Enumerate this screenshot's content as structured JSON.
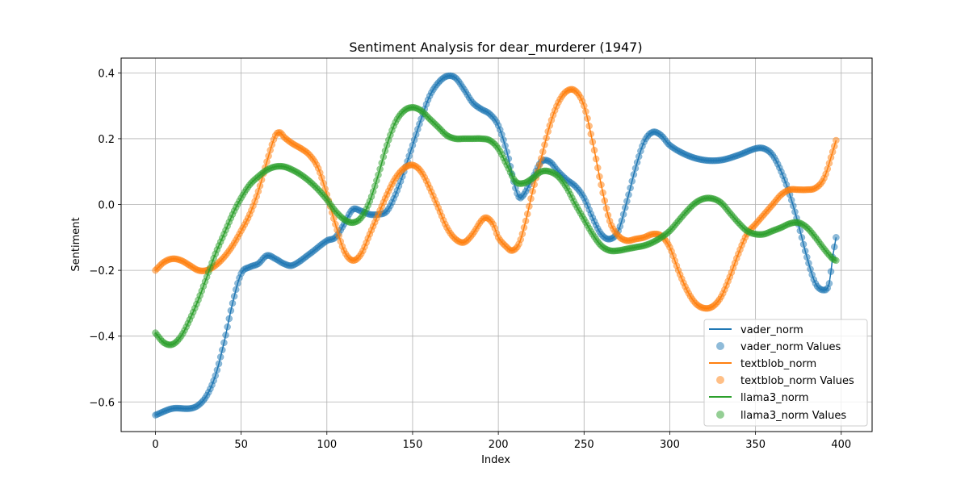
{
  "chart_data": {
    "type": "line",
    "title": "Sentiment Analysis for dear_murderer (1947)",
    "xlabel": "Index",
    "ylabel": "Sentiment",
    "xlim": [
      -20,
      418
    ],
    "ylim": [
      -0.69,
      0.445
    ],
    "xticks": [
      0,
      50,
      100,
      150,
      200,
      250,
      300,
      350,
      400
    ],
    "yticks": [
      -0.6,
      -0.4,
      -0.2,
      0.0,
      0.2,
      0.4
    ],
    "ytick_labels": [
      "−0.6",
      "−0.4",
      "−0.2",
      "0.0",
      "0.2",
      "0.4"
    ],
    "grid": true,
    "legend_position": "lower-right",
    "n_points": 398,
    "series": [
      {
        "name": "vader_norm",
        "scatter_name": "vader_norm Values",
        "color": "#1f77b4",
        "keypoints": [
          [
            0,
            -0.64
          ],
          [
            10,
            -0.62
          ],
          [
            20,
            -0.62
          ],
          [
            25,
            -0.61
          ],
          [
            30,
            -0.58
          ],
          [
            35,
            -0.52
          ],
          [
            40,
            -0.42
          ],
          [
            45,
            -0.3
          ],
          [
            50,
            -0.21
          ],
          [
            55,
            -0.19
          ],
          [
            60,
            -0.18
          ],
          [
            65,
            -0.155
          ],
          [
            70,
            -0.165
          ],
          [
            75,
            -0.18
          ],
          [
            80,
            -0.185
          ],
          [
            90,
            -0.15
          ],
          [
            100,
            -0.11
          ],
          [
            105,
            -0.1
          ],
          [
            110,
            -0.06
          ],
          [
            115,
            -0.015
          ],
          [
            120,
            -0.02
          ],
          [
            125,
            -0.03
          ],
          [
            130,
            -0.03
          ],
          [
            135,
            -0.02
          ],
          [
            140,
            0.03
          ],
          [
            145,
            0.1
          ],
          [
            150,
            0.18
          ],
          [
            155,
            0.26
          ],
          [
            160,
            0.33
          ],
          [
            165,
            0.37
          ],
          [
            170,
            0.39
          ],
          [
            175,
            0.385
          ],
          [
            180,
            0.35
          ],
          [
            185,
            0.31
          ],
          [
            190,
            0.29
          ],
          [
            195,
            0.275
          ],
          [
            200,
            0.24
          ],
          [
            205,
            0.16
          ],
          [
            210,
            0.05
          ],
          [
            213,
            0.02
          ],
          [
            220,
            0.08
          ],
          [
            225,
            0.13
          ],
          [
            230,
            0.13
          ],
          [
            235,
            0.1
          ],
          [
            240,
            0.075
          ],
          [
            245,
            0.055
          ],
          [
            250,
            0.02
          ],
          [
            255,
            -0.04
          ],
          [
            260,
            -0.09
          ],
          [
            265,
            -0.105
          ],
          [
            270,
            -0.08
          ],
          [
            275,
            0.01
          ],
          [
            280,
            0.11
          ],
          [
            285,
            0.19
          ],
          [
            290,
            0.22
          ],
          [
            295,
            0.21
          ],
          [
            300,
            0.18
          ],
          [
            310,
            0.15
          ],
          [
            320,
            0.135
          ],
          [
            330,
            0.135
          ],
          [
            340,
            0.15
          ],
          [
            350,
            0.17
          ],
          [
            355,
            0.17
          ],
          [
            360,
            0.15
          ],
          [
            365,
            0.1
          ],
          [
            370,
            0.03
          ],
          [
            375,
            -0.06
          ],
          [
            380,
            -0.16
          ],
          [
            385,
            -0.24
          ],
          [
            390,
            -0.26
          ],
          [
            393,
            -0.24
          ],
          [
            395,
            -0.16
          ],
          [
            397,
            -0.1
          ]
        ]
      },
      {
        "name": "textblob_norm",
        "scatter_name": "textblob_norm Values",
        "color": "#ff7f0e",
        "keypoints": [
          [
            0,
            -0.2
          ],
          [
            5,
            -0.175
          ],
          [
            10,
            -0.165
          ],
          [
            15,
            -0.17
          ],
          [
            20,
            -0.185
          ],
          [
            25,
            -0.2
          ],
          [
            30,
            -0.2
          ],
          [
            35,
            -0.185
          ],
          [
            40,
            -0.16
          ],
          [
            45,
            -0.125
          ],
          [
            50,
            -0.08
          ],
          [
            55,
            -0.03
          ],
          [
            60,
            0.04
          ],
          [
            65,
            0.13
          ],
          [
            70,
            0.21
          ],
          [
            73,
            0.218
          ],
          [
            75,
            0.205
          ],
          [
            80,
            0.185
          ],
          [
            85,
            0.17
          ],
          [
            90,
            0.15
          ],
          [
            95,
            0.11
          ],
          [
            100,
            0.03
          ],
          [
            105,
            -0.06
          ],
          [
            110,
            -0.14
          ],
          [
            115,
            -0.17
          ],
          [
            120,
            -0.15
          ],
          [
            125,
            -0.09
          ],
          [
            130,
            -0.03
          ],
          [
            135,
            0.03
          ],
          [
            140,
            0.08
          ],
          [
            145,
            0.11
          ],
          [
            150,
            0.12
          ],
          [
            155,
            0.1
          ],
          [
            160,
            0.05
          ],
          [
            165,
            -0.01
          ],
          [
            170,
            -0.07
          ],
          [
            175,
            -0.105
          ],
          [
            180,
            -0.115
          ],
          [
            185,
            -0.09
          ],
          [
            190,
            -0.05
          ],
          [
            193,
            -0.04
          ],
          [
            197,
            -0.06
          ],
          [
            200,
            -0.1
          ],
          [
            205,
            -0.13
          ],
          [
            208,
            -0.14
          ],
          [
            212,
            -0.12
          ],
          [
            216,
            -0.05
          ],
          [
            220,
            0.04
          ],
          [
            225,
            0.14
          ],
          [
            230,
            0.24
          ],
          [
            235,
            0.31
          ],
          [
            240,
            0.345
          ],
          [
            245,
            0.345
          ],
          [
            250,
            0.3
          ],
          [
            255,
            0.19
          ],
          [
            260,
            0.06
          ],
          [
            265,
            -0.05
          ],
          [
            270,
            -0.095
          ],
          [
            275,
            -0.11
          ],
          [
            280,
            -0.105
          ],
          [
            285,
            -0.1
          ],
          [
            290,
            -0.09
          ],
          [
            295,
            -0.095
          ],
          [
            300,
            -0.13
          ],
          [
            305,
            -0.2
          ],
          [
            310,
            -0.26
          ],
          [
            315,
            -0.3
          ],
          [
            320,
            -0.315
          ],
          [
            325,
            -0.31
          ],
          [
            330,
            -0.28
          ],
          [
            335,
            -0.22
          ],
          [
            340,
            -0.15
          ],
          [
            345,
            -0.09
          ],
          [
            350,
            -0.06
          ],
          [
            355,
            -0.03
          ],
          [
            360,
            0.0
          ],
          [
            365,
            0.03
          ],
          [
            370,
            0.045
          ],
          [
            375,
            0.045
          ],
          [
            380,
            0.045
          ],
          [
            385,
            0.05
          ],
          [
            390,
            0.08
          ],
          [
            395,
            0.16
          ],
          [
            397,
            0.195
          ]
        ]
      },
      {
        "name": "llama3_norm",
        "scatter_name": "llama3_norm Values",
        "color": "#2ca02c",
        "keypoints": [
          [
            0,
            -0.39
          ],
          [
            5,
            -0.42
          ],
          [
            10,
            -0.425
          ],
          [
            15,
            -0.4
          ],
          [
            20,
            -0.35
          ],
          [
            25,
            -0.29
          ],
          [
            30,
            -0.22
          ],
          [
            35,
            -0.15
          ],
          [
            40,
            -0.09
          ],
          [
            45,
            -0.03
          ],
          [
            50,
            0.02
          ],
          [
            55,
            0.06
          ],
          [
            60,
            0.085
          ],
          [
            65,
            0.105
          ],
          [
            70,
            0.115
          ],
          [
            75,
            0.115
          ],
          [
            80,
            0.105
          ],
          [
            85,
            0.09
          ],
          [
            90,
            0.07
          ],
          [
            95,
            0.045
          ],
          [
            100,
            0.015
          ],
          [
            105,
            -0.02
          ],
          [
            110,
            -0.045
          ],
          [
            115,
            -0.055
          ],
          [
            120,
            -0.04
          ],
          [
            125,
            0.01
          ],
          [
            130,
            0.09
          ],
          [
            135,
            0.18
          ],
          [
            140,
            0.25
          ],
          [
            145,
            0.285
          ],
          [
            150,
            0.295
          ],
          [
            155,
            0.285
          ],
          [
            160,
            0.26
          ],
          [
            165,
            0.235
          ],
          [
            170,
            0.21
          ],
          [
            175,
            0.2
          ],
          [
            180,
            0.2
          ],
          [
            185,
            0.2
          ],
          [
            190,
            0.2
          ],
          [
            195,
            0.195
          ],
          [
            200,
            0.17
          ],
          [
            205,
            0.12
          ],
          [
            210,
            0.07
          ],
          [
            215,
            0.065
          ],
          [
            220,
            0.08
          ],
          [
            225,
            0.1
          ],
          [
            230,
            0.1
          ],
          [
            235,
            0.085
          ],
          [
            240,
            0.05
          ],
          [
            245,
            0.0
          ],
          [
            250,
            -0.045
          ],
          [
            255,
            -0.09
          ],
          [
            260,
            -0.125
          ],
          [
            265,
            -0.14
          ],
          [
            270,
            -0.14
          ],
          [
            275,
            -0.135
          ],
          [
            280,
            -0.13
          ],
          [
            285,
            -0.125
          ],
          [
            290,
            -0.115
          ],
          [
            295,
            -0.1
          ],
          [
            300,
            -0.08
          ],
          [
            305,
            -0.05
          ],
          [
            310,
            -0.02
          ],
          [
            315,
            0.005
          ],
          [
            320,
            0.018
          ],
          [
            325,
            0.018
          ],
          [
            330,
            0.005
          ],
          [
            335,
            -0.025
          ],
          [
            340,
            -0.055
          ],
          [
            345,
            -0.08
          ],
          [
            350,
            -0.09
          ],
          [
            355,
            -0.09
          ],
          [
            360,
            -0.08
          ],
          [
            365,
            -0.07
          ],
          [
            370,
            -0.058
          ],
          [
            375,
            -0.055
          ],
          [
            380,
            -0.07
          ],
          [
            385,
            -0.1
          ],
          [
            390,
            -0.135
          ],
          [
            395,
            -0.165
          ],
          [
            397,
            -0.17
          ]
        ]
      }
    ]
  }
}
